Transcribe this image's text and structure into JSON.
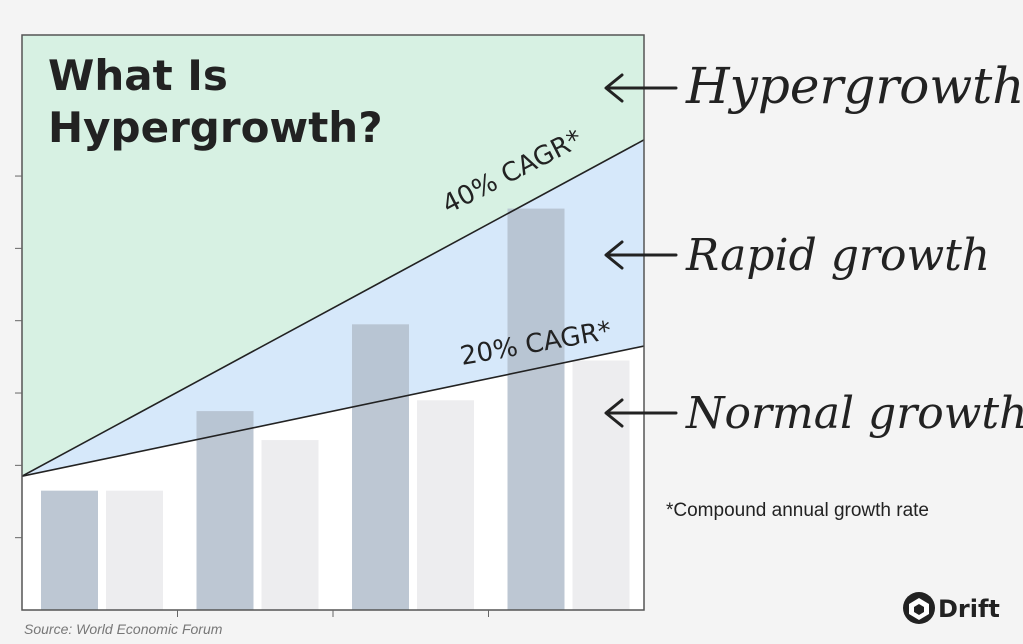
{
  "chart_data": {
    "type": "bar",
    "title_lines": [
      "What Is",
      "Hypergrowth?"
    ],
    "categories": [
      "",
      "",
      "",
      ""
    ],
    "series": [
      {
        "values": [
          1.65,
          2.75,
          3.95,
          5.55
        ]
      },
      {
        "values": [
          1.65,
          2.35,
          2.9,
          3.45
        ]
      }
    ],
    "ylim": [
      0,
      7.95
    ],
    "trend_lines": [
      {
        "label": "40% CAGR*",
        "start": 1.85,
        "end": 6.5
      },
      {
        "label": "20% CAGR*",
        "start": 1.85,
        "end": 3.65
      }
    ],
    "regions": [
      {
        "label": "Hypergrowth",
        "color": "#d7f1e3"
      },
      {
        "label": "Rapid growth",
        "color": "#d6e8fa"
      },
      {
        "label": "Normal growth",
        "color": "#ffffff"
      }
    ],
    "bar_colors": [
      "#b4bfcd",
      "#ececee"
    ],
    "grid": false
  },
  "footnote": "*Compound annual growth rate",
  "source": "Source: World Economic Forum",
  "brand": {
    "name": "Drift",
    "icon": "drift-logo-icon"
  }
}
